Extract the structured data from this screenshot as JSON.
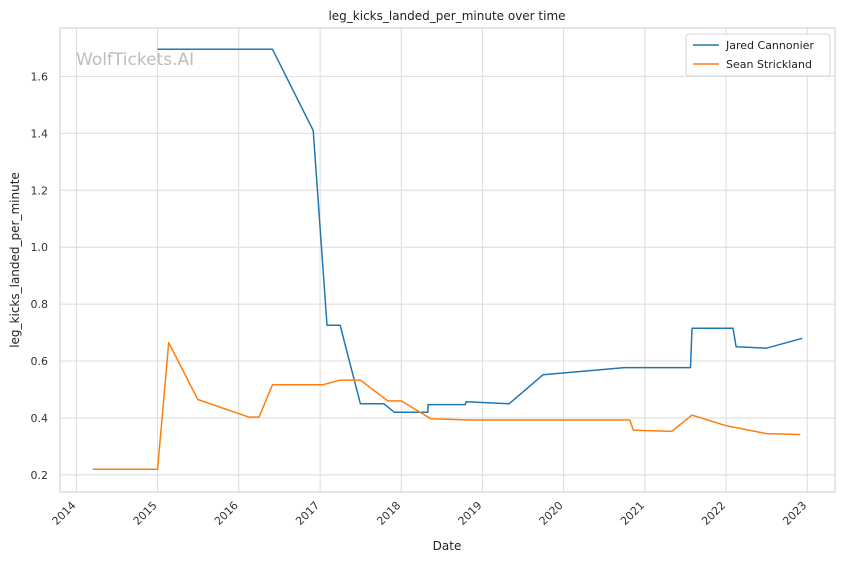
{
  "chart_data": {
    "type": "line",
    "title": "leg_kicks_landed_per_minute over time",
    "xlabel": "Date",
    "ylabel": "leg_kicks_landed_per_minute",
    "watermark": "WolfTickets.AI",
    "x_ticks": [
      "2014",
      "2015",
      "2016",
      "2017",
      "2018",
      "2019",
      "2020",
      "2021",
      "2022",
      "2023"
    ],
    "y_ticks": [
      "0.2",
      "0.4",
      "0.6",
      "0.8",
      "1.0",
      "1.2",
      "1.4",
      "1.6"
    ],
    "xlim": [
      "2013-10-19",
      "2023-05-06"
    ],
    "ylim": [
      0.14,
      1.77
    ],
    "grid": true,
    "legend_position": "top-right",
    "series": [
      {
        "name": "Jared Cannonier",
        "color": "#1f77b4",
        "points": [
          [
            "2015-01-01",
            1.695
          ],
          [
            "2016-06-01",
            1.695
          ],
          [
            "2016-12-01",
            1.41
          ],
          [
            "2017-02-01",
            0.726
          ],
          [
            "2017-04-01",
            0.726
          ],
          [
            "2017-07-01",
            0.45
          ],
          [
            "2017-10-15",
            0.45
          ],
          [
            "2017-12-01",
            0.42
          ],
          [
            "2018-05-01",
            0.42
          ],
          [
            "2018-05-01",
            0.447
          ],
          [
            "2018-10-15",
            0.447
          ],
          [
            "2018-10-20",
            0.457
          ],
          [
            "2019-05-01",
            0.45
          ],
          [
            "2019-10-01",
            0.552
          ],
          [
            "2020-10-01",
            0.577
          ],
          [
            "2021-07-25",
            0.577
          ],
          [
            "2021-08-01",
            0.715
          ],
          [
            "2022-02-01",
            0.715
          ],
          [
            "2022-02-15",
            0.65
          ],
          [
            "2022-07-01",
            0.645
          ],
          [
            "2022-12-10",
            0.68
          ]
        ]
      },
      {
        "name": "Sean Strickland",
        "color": "#ff7f0e",
        "points": [
          [
            "2014-03-15",
            0.22
          ],
          [
            "2015-01-01",
            0.22
          ],
          [
            "2015-02-20",
            0.665
          ],
          [
            "2015-07-01",
            0.465
          ],
          [
            "2016-02-15",
            0.403
          ],
          [
            "2016-04-01",
            0.403
          ],
          [
            "2016-06-01",
            0.517
          ],
          [
            "2017-01-15",
            0.517
          ],
          [
            "2017-04-01",
            0.533
          ],
          [
            "2017-07-01",
            0.533
          ],
          [
            "2017-11-01",
            0.46
          ],
          [
            "2018-01-01",
            0.46
          ],
          [
            "2018-05-15",
            0.397
          ],
          [
            "2018-11-01",
            0.393
          ],
          [
            "2020-10-25",
            0.393
          ],
          [
            "2020-11-10",
            0.357
          ],
          [
            "2021-05-01",
            0.353
          ],
          [
            "2021-08-01",
            0.41
          ],
          [
            "2022-01-01",
            0.373
          ],
          [
            "2022-07-01",
            0.345
          ],
          [
            "2022-12-01",
            0.342
          ]
        ]
      }
    ]
  }
}
